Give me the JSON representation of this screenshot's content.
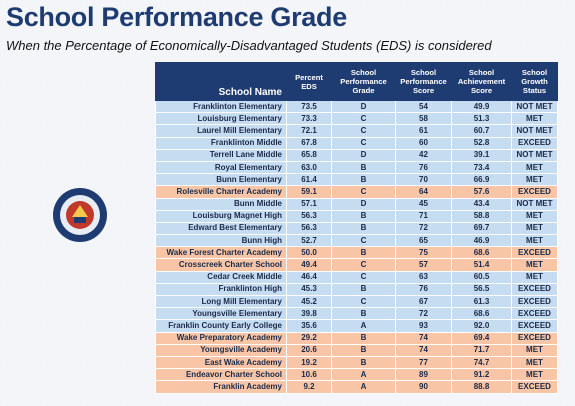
{
  "header": {
    "title": "School Performance Grade",
    "subtitle": "When the Percentage of Economically-Disadvantaged Students (EDS) is considered"
  },
  "table": {
    "columns": [
      "School Name",
      "Percent EDS",
      "School Performance Grade",
      "School Performance Score",
      "School Achievement Score",
      "School Growth Status"
    ],
    "header_color": "#1f3c72",
    "rows": [
      [
        "Franklinton Elementary",
        "73.5",
        "D",
        "54",
        "49.9",
        "NOT MET"
      ],
      [
        "Louisburg Elementary",
        "73.3",
        "C",
        "58",
        "51.3",
        "MET"
      ],
      [
        "Laurel Mill Elementary",
        "72.1",
        "C",
        "61",
        "60.7",
        "NOT MET"
      ],
      [
        "Franklinton Middle",
        "67.8",
        "C",
        "60",
        "52.8",
        "EXCEED"
      ],
      [
        "Terrell Lane Middle",
        "65.8",
        "D",
        "42",
        "39.1",
        "NOT MET"
      ],
      [
        "Royal Elementary",
        "63.0",
        "B",
        "76",
        "73.4",
        "MET"
      ],
      [
        "Bunn Elementary",
        "61.4",
        "B",
        "70",
        "66.9",
        "MET"
      ],
      [
        "Rolesville Charter Academy",
        "59.1",
        "C",
        "64",
        "57.6",
        "EXCEED"
      ],
      [
        "Bunn Middle",
        "57.1",
        "D",
        "45",
        "43.4",
        "NOT MET"
      ],
      [
        "Louisburg Magnet High",
        "56.3",
        "B",
        "71",
        "58.8",
        "MET"
      ],
      [
        "Edward Best Elementary",
        "56.3",
        "B",
        "72",
        "69.7",
        "MET"
      ],
      [
        "Bunn High",
        "52.7",
        "C",
        "65",
        "46.9",
        "MET"
      ],
      [
        "Wake Forest Charter Academy",
        "50.0",
        "B",
        "75",
        "68.6",
        "EXCEED"
      ],
      [
        "Crosscreek Charter School",
        "49.4",
        "C",
        "57",
        "51.4",
        "MET"
      ],
      [
        "Cedar Creek Middle",
        "46.4",
        "C",
        "63",
        "60.5",
        "MET"
      ],
      [
        "Franklinton High",
        "45.3",
        "B",
        "76",
        "56.5",
        "EXCEED"
      ],
      [
        "Long Mill Elementary",
        "45.2",
        "C",
        "67",
        "61.3",
        "EXCEED"
      ],
      [
        "Youngsville Elementary",
        "39.8",
        "B",
        "72",
        "68.6",
        "EXCEED"
      ],
      [
        "Franklin County Early College",
        "35.6",
        "A",
        "93",
        "92.0",
        "EXCEED"
      ],
      [
        "Wake Preparatory Academy",
        "29.2",
        "B",
        "74",
        "69.4",
        "EXCEED"
      ],
      [
        "Youngsville Academy",
        "20.6",
        "B",
        "74",
        "71.7",
        "MET"
      ],
      [
        "East Wake Academy",
        "19.2",
        "B",
        "77",
        "74.7",
        "MET"
      ],
      [
        "Endeavor Charter School",
        "10.6",
        "A",
        "89",
        "91.2",
        "MET"
      ],
      [
        "Franklin Academy",
        "9.2",
        "A",
        "90",
        "88.8",
        "EXCEED"
      ]
    ],
    "row_colors": [
      "#c6dcf1",
      "#c6dcf1",
      "#c6dcf1",
      "#c6dcf1",
      "#c6dcf1",
      "#c6dcf1",
      "#c6dcf1",
      "#f8c6a6",
      "#c6dcf1",
      "#c6dcf1",
      "#c6dcf1",
      "#c6dcf1",
      "#f8c6a6",
      "#f8c6a6",
      "#c6dcf1",
      "#c6dcf1",
      "#c6dcf1",
      "#c6dcf1",
      "#c6dcf1",
      "#f8c6a6",
      "#f8c6a6",
      "#f8c6a6",
      "#f8c6a6",
      "#f8c6a6"
    ]
  }
}
